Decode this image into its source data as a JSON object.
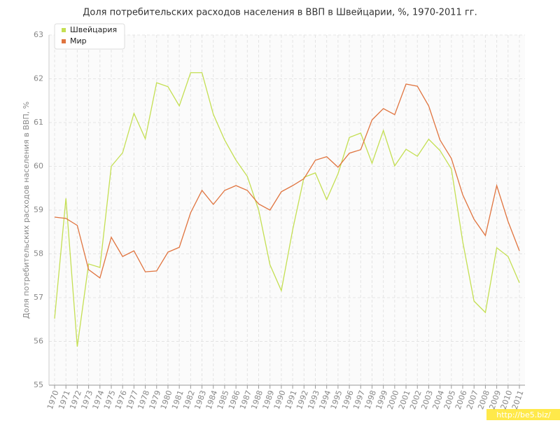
{
  "chart_data": {
    "type": "line",
    "title": "Доля потребительских расходов населения в ВВП в Швейцарии, %, 1970-2011 гг.",
    "y_label": "Доля потребительских расходов населения в ВВП, %",
    "watermark": "http://be5.biz/",
    "categories": [
      "1970",
      "1971",
      "1972",
      "1973",
      "1974",
      "1975",
      "1976",
      "1977",
      "1978",
      "1979",
      "1980",
      "1981",
      "1982",
      "1983",
      "1984",
      "1985",
      "1986",
      "1987",
      "1988",
      "1989",
      "1990",
      "1991",
      "1992",
      "1993",
      "1994",
      "1995",
      "1996",
      "1997",
      "1998",
      "1999",
      "2000",
      "2001",
      "2002",
      "2003",
      "2004",
      "2005",
      "2006",
      "2007",
      "2008",
      "2009",
      "2010",
      "2011"
    ],
    "series": [
      {
        "name": "Швейцария",
        "color": "#c4df52",
        "values": [
          56.52,
          59.27,
          55.88,
          57.77,
          57.69,
          60.0,
          60.31,
          61.21,
          60.63,
          61.91,
          61.82,
          61.38,
          62.14,
          62.14,
          61.19,
          60.6,
          60.14,
          59.77,
          59.0,
          57.75,
          57.16,
          58.55,
          59.75,
          59.85,
          59.24,
          59.83,
          60.66,
          60.76,
          60.07,
          60.82,
          60.01,
          60.39,
          60.23,
          60.62,
          60.36,
          59.94,
          58.28,
          56.92,
          56.66,
          58.14,
          57.94,
          57.34
        ]
      },
      {
        "name": "Мир",
        "color": "#e0743f",
        "values": [
          58.84,
          58.81,
          58.65,
          57.64,
          57.45,
          58.38,
          57.94,
          58.07,
          57.59,
          57.61,
          58.04,
          58.15,
          58.94,
          59.45,
          59.13,
          59.45,
          59.56,
          59.45,
          59.14,
          59.0,
          59.42,
          59.56,
          59.72,
          60.14,
          60.22,
          59.98,
          60.3,
          60.38,
          61.06,
          61.32,
          61.18,
          61.88,
          61.83,
          61.38,
          60.6,
          60.18,
          59.35,
          58.79,
          58.42,
          59.56,
          58.74,
          58.07
        ]
      }
    ],
    "ylim": [
      55,
      63
    ],
    "yticks": [
      55,
      56,
      57,
      58,
      59,
      60,
      61,
      62,
      63
    ],
    "grid": true,
    "legend": "top-left"
  }
}
